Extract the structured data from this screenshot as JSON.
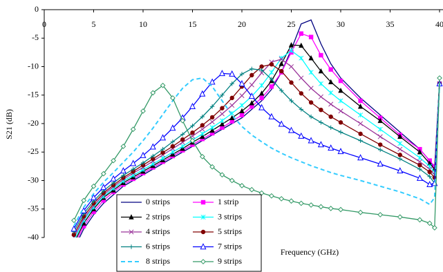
{
  "chart_data": {
    "type": "line",
    "x_label": "Frequency (GHz)",
    "y_label": "S21 (dB)",
    "xlim": [
      0,
      40
    ],
    "ylim": [
      -40,
      0
    ],
    "xticks": [
      0,
      5,
      10,
      15,
      20,
      25,
      30,
      35,
      40
    ],
    "yticks": [
      0,
      -5,
      -10,
      -15,
      -20,
      -25,
      -30,
      -35,
      -40
    ],
    "grid": false,
    "x": [
      3,
      4,
      5,
      6,
      7,
      8,
      9,
      10,
      11,
      12,
      13,
      14,
      15,
      16,
      17,
      18,
      19,
      20,
      21,
      22,
      23,
      24,
      25,
      26,
      27,
      28,
      29,
      30,
      32,
      34,
      36,
      38,
      39,
      39.5,
      40
    ],
    "series": [
      {
        "name": "0 strips",
        "color": "#000080",
        "marker": "none",
        "dash": false,
        "values": [
          -42,
          -38.5,
          -36,
          -34,
          -32.5,
          -31,
          -30,
          -29,
          -28,
          -27,
          -26,
          -25,
          -24,
          -23,
          -22,
          -21,
          -20,
          -19,
          -17.5,
          -16,
          -14,
          -11,
          -7,
          -2.5,
          -1.8,
          -6,
          -9.5,
          -12,
          -15.5,
          -18.5,
          -21.5,
          -24.5,
          -26.5,
          -28,
          -12.5
        ]
      },
      {
        "name": "1 strip",
        "color": "#ff00ff",
        "marker": "square",
        "dash": false,
        "values": [
          -41.5,
          -38,
          -35.5,
          -33.5,
          -32,
          -30.7,
          -29.7,
          -28.7,
          -27.7,
          -26.7,
          -25.7,
          -24.7,
          -23.7,
          -22.7,
          -21.7,
          -20.7,
          -19.6,
          -18.5,
          -17,
          -15.5,
          -13.5,
          -11,
          -7.5,
          -4.2,
          -4.8,
          -8,
          -10.5,
          -12.5,
          -16,
          -19,
          -22,
          -24.5,
          -26.5,
          -27.5,
          -13
        ]
      },
      {
        "name": "2 strips",
        "color": "#000000",
        "marker": "triangle",
        "dash": false,
        "values": [
          -41,
          -37.5,
          -35,
          -33,
          -31.7,
          -30.4,
          -29.4,
          -28.4,
          -27.4,
          -26.4,
          -25.4,
          -24.4,
          -23.3,
          -22.3,
          -21.2,
          -20.1,
          -19,
          -17.8,
          -16.4,
          -14.7,
          -12.5,
          -9.5,
          -6.2,
          -6.3,
          -8.5,
          -10.8,
          -12.7,
          -14.2,
          -17,
          -19.5,
          -22.3,
          -25,
          -27,
          -28,
          -13
        ]
      },
      {
        "name": "3 strips",
        "color": "#00ffff",
        "marker": "star",
        "dash": false,
        "values": [
          -40.5,
          -37,
          -34.7,
          -32.8,
          -31.4,
          -30.1,
          -29.1,
          -28.1,
          -27.1,
          -26.1,
          -25,
          -24,
          -22.9,
          -21.8,
          -20.7,
          -19.5,
          -18.2,
          -16.8,
          -15.2,
          -13.3,
          -11,
          -8.5,
          -7.2,
          -8.5,
          -11,
          -13,
          -14.6,
          -16,
          -18.5,
          -21,
          -23.5,
          -26,
          -27.5,
          -28.5,
          -13
        ]
      },
      {
        "name": "4 strips",
        "color": "#993399",
        "marker": "x",
        "dash": false,
        "values": [
          -40,
          -36.7,
          -34.4,
          -32.5,
          -31.1,
          -29.8,
          -28.7,
          -27.7,
          -26.6,
          -25.5,
          -24.4,
          -23.3,
          -22.2,
          -21,
          -19.7,
          -18.3,
          -16.8,
          -15.1,
          -13.2,
          -11.1,
          -9.2,
          -8.7,
          -10,
          -12,
          -13.8,
          -15.3,
          -16.6,
          -17.8,
          -20,
          -22.3,
          -24.5,
          -26.7,
          -28,
          -29,
          -13
        ]
      },
      {
        "name": "5 strips",
        "color": "#800000",
        "marker": "circle",
        "dash": false,
        "values": [
          -39.5,
          -36.3,
          -34,
          -32.2,
          -30.8,
          -29.5,
          -28.4,
          -27.3,
          -26.2,
          -25.1,
          -24,
          -22.8,
          -21.6,
          -20.3,
          -18.9,
          -17.3,
          -15.5,
          -13.5,
          -11.5,
          -10,
          -9.6,
          -10.8,
          -12.8,
          -14.7,
          -16.3,
          -17.6,
          -18.8,
          -19.8,
          -21.8,
          -23.7,
          -25.5,
          -27.3,
          -28.5,
          -29.5,
          -13
        ]
      },
      {
        "name": "6 strips",
        "color": "#008080",
        "marker": "plus",
        "dash": false,
        "values": [
          -39,
          -35.8,
          -33.6,
          -31.8,
          -30.4,
          -29.1,
          -28,
          -26.9,
          -25.7,
          -24.5,
          -23.2,
          -21.9,
          -20.4,
          -18.8,
          -17,
          -15,
          -13,
          -11.3,
          -10.4,
          -10.6,
          -12.2,
          -14.2,
          -16,
          -17.5,
          -18.8,
          -19.8,
          -20.7,
          -21.5,
          -23,
          -24.6,
          -26.2,
          -28,
          -29.3,
          -30.5,
          -13
        ]
      },
      {
        "name": "7 strips",
        "color": "#0000ff",
        "marker": "triangle-open",
        "dash": false,
        "values": [
          -38.5,
          -35.3,
          -33,
          -31.2,
          -29.7,
          -28.3,
          -27,
          -25.6,
          -24.1,
          -22.5,
          -20.8,
          -19,
          -17,
          -14.8,
          -12.7,
          -11.2,
          -11.3,
          -13,
          -15.2,
          -17.2,
          -18.8,
          -20.1,
          -21.2,
          -22.2,
          -23,
          -23.7,
          -24.3,
          -24.9,
          -26,
          -27.1,
          -28.3,
          -29.6,
          -30.7,
          -30.5,
          -13
        ]
      },
      {
        "name": "8 strips",
        "color": "#33ccff",
        "marker": "none",
        "dash": true,
        "values": [
          -38,
          -34.7,
          -32.3,
          -30.3,
          -28.6,
          -26.8,
          -25,
          -23,
          -20.8,
          -18.4,
          -16,
          -13.8,
          -12.3,
          -12,
          -13.5,
          -16,
          -18.5,
          -20.5,
          -22,
          -23.2,
          -24.3,
          -25.2,
          -26,
          -26.7,
          -27.4,
          -28,
          -28.6,
          -29.1,
          -30,
          -31,
          -32,
          -33.2,
          -34.2,
          -33,
          -13
        ]
      },
      {
        "name": "9 strips",
        "color": "#339966",
        "marker": "diamond",
        "dash": false,
        "values": [
          -37,
          -33.5,
          -31,
          -28.8,
          -26.5,
          -24,
          -21,
          -17.8,
          -14.6,
          -13.3,
          -15.5,
          -19.5,
          -23,
          -25.8,
          -27.6,
          -29,
          -30,
          -30.9,
          -31.6,
          -32.2,
          -32.7,
          -33.2,
          -33.6,
          -34,
          -34.3,
          -34.6,
          -34.9,
          -35.1,
          -35.6,
          -36,
          -36.4,
          -36.9,
          -37.5,
          -38.3,
          -12
        ]
      }
    ]
  }
}
